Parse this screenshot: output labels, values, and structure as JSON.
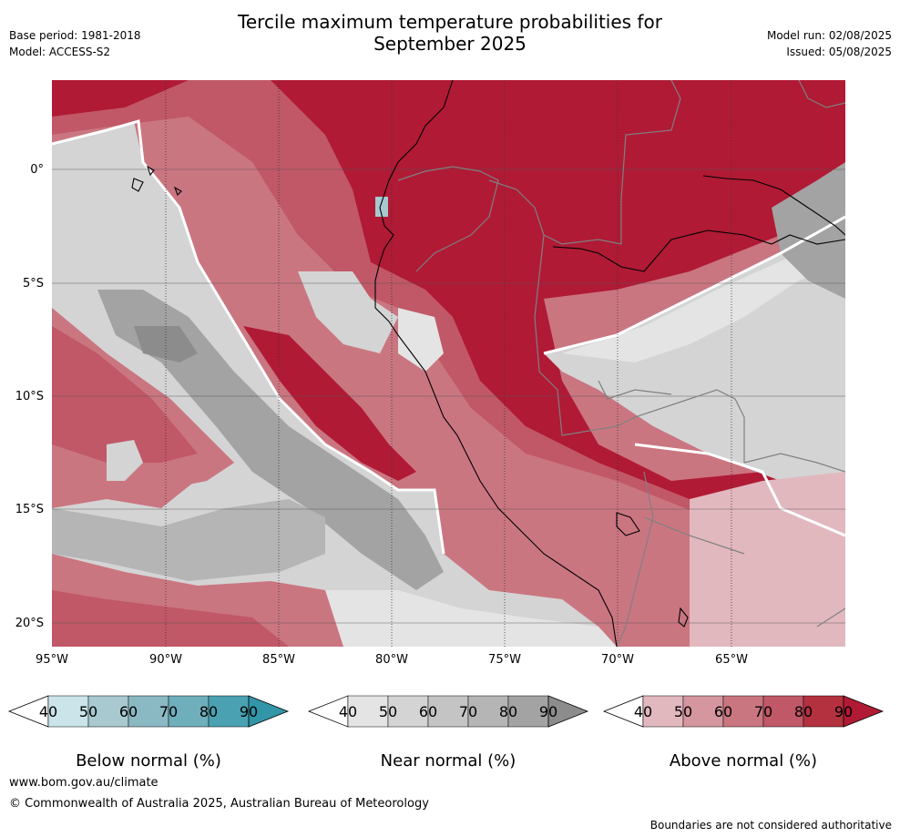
{
  "header": {
    "title_line1": "Tercile maximum temperature probabilities for",
    "title_line2": "September 2025",
    "base_period": "Base period: 1981-2018",
    "model": "Model: ACCESS-S2",
    "model_run": "Model run: 02/08/2025",
    "issued": "Issued: 05/08/2025"
  },
  "map": {
    "lat_labels": [
      "0°",
      "5°S",
      "10°S",
      "15°S",
      "20°S"
    ],
    "lon_labels": [
      "95°W",
      "90°W",
      "85°W",
      "80°W",
      "75°W",
      "70°W",
      "65°W"
    ],
    "colors": {
      "land_border": "#808080",
      "coast": "#000000"
    }
  },
  "colorbars": [
    {
      "title": "Below normal (%)",
      "ticks": [
        "40",
        "50",
        "60",
        "70",
        "80",
        "90"
      ],
      "colors": [
        "#ffffff",
        "#cae4e9",
        "#a7c9cf",
        "#8bb9c3",
        "#6faebb",
        "#4aa1b1",
        "#3295a8"
      ]
    },
    {
      "title": "Near normal (%)",
      "ticks": [
        "40",
        "50",
        "60",
        "70",
        "80",
        "90"
      ],
      "colors": [
        "#ffffff",
        "#e4e4e4",
        "#d4d4d4",
        "#c4c4c4",
        "#b5b5b5",
        "#a3a3a3",
        "#8c8c8c"
      ]
    },
    {
      "title": "Above normal (%)",
      "ticks": [
        "40",
        "50",
        "60",
        "70",
        "80",
        "90"
      ],
      "colors": [
        "#ffffff",
        "#e2b8bf",
        "#d5969f",
        "#ca7681",
        "#c15867",
        "#b4313f",
        "#b01a35"
      ]
    }
  ],
  "footer": {
    "url": "www.bom.gov.au/climate",
    "copyright": "© Commonwealth of Australia 2025, Australian Bureau of Meteorology",
    "disclaimer": "Boundaries are not considered authoritative"
  }
}
